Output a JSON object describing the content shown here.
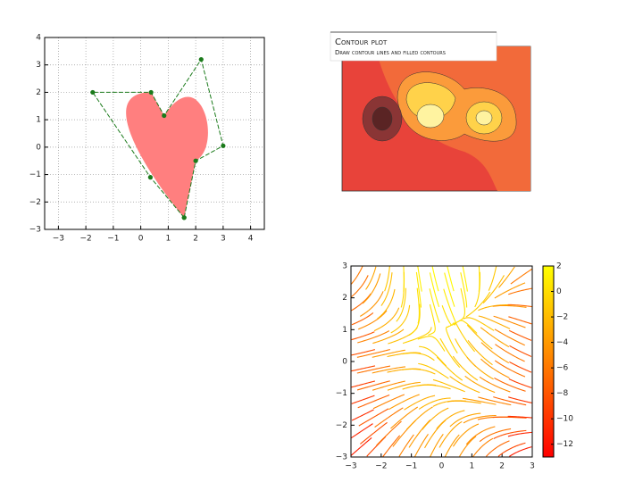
{
  "chart_data": [
    {
      "type": "path",
      "series": [
        {
          "color": "#1a7a1a",
          "x": [
            1.58,
            0.35,
            -1.75,
            0.375,
            0.85,
            2.2,
            3,
            2.0,
            1.58
          ],
          "values": [
            -2.57,
            -1.1,
            2.0,
            2.0,
            1.15,
            3.2,
            0.05,
            -0.5,
            -2.57
          ]
        }
      ],
      "fill": "#ff7f7f",
      "xlim": [
        -3.5,
        4.5
      ],
      "ylim": [
        -3,
        4
      ],
      "xticks": [
        {
          "value": -3,
          "label": "−3"
        },
        {
          "value": -2,
          "label": "−2"
        },
        {
          "value": -1,
          "label": "−1"
        },
        0,
        1,
        2,
        3,
        4
      ],
      "yticks": [
        {
          "value": -3,
          "label": "−3"
        },
        {
          "value": -2,
          "label": "−2"
        },
        {
          "value": -1,
          "label": "−1"
        },
        0,
        1,
        2,
        3,
        4
      ],
      "grid": true
    },
    {
      "type": "contour",
      "title": "Contour plot",
      "subtitle": "Draw contour lines and filled contours"
    },
    {
      "type": "streamplot",
      "xlim": [
        -3,
        3
      ],
      "ylim": [
        -3,
        3
      ],
      "xticks": [
        {
          "value": -3,
          "label": "−3"
        },
        {
          "value": -2,
          "label": "−2"
        },
        {
          "value": -1,
          "label": "−1"
        },
        0,
        1,
        2,
        3
      ],
      "yticks": [
        {
          "value": -3,
          "label": "−3"
        },
        {
          "value": -2,
          "label": "−2"
        },
        {
          "value": -1,
          "label": "−1"
        },
        0,
        1,
        2,
        3
      ],
      "clim": [
        -13,
        2
      ],
      "cticks": [
        2,
        0,
        {
          "value": -2,
          "label": "−2"
        },
        {
          "value": -4,
          "label": "−4"
        },
        {
          "value": -6,
          "label": "−6"
        },
        {
          "value": -8,
          "label": "−8"
        },
        {
          "value": -10,
          "label": "−10"
        },
        {
          "value": -12,
          "label": "−12"
        }
      ]
    }
  ]
}
